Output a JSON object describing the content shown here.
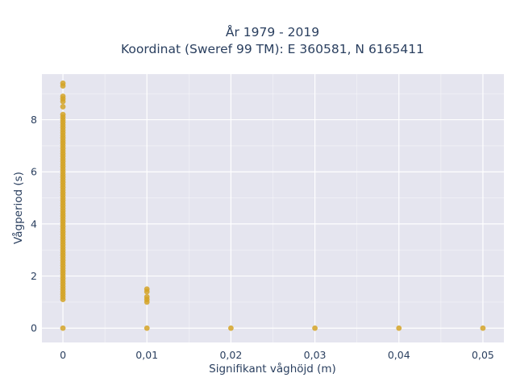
{
  "chart_data": {
    "type": "scatter",
    "title_line1": "År 1979 - 2019",
    "title_line2": "Koordinat (Sweref 99 TM): E 360581, N 6165411",
    "xlabel": "Signifikant våghöjd (m)",
    "ylabel": "Vågperiod (s)",
    "xlim": [
      -0.0025,
      0.0525
    ],
    "ylim": [
      -0.55,
      9.75
    ],
    "x_ticks": [
      {
        "value": 0,
        "label": "0"
      },
      {
        "value": 0.01,
        "label": "0,01"
      },
      {
        "value": 0.02,
        "label": "0,02"
      },
      {
        "value": 0.03,
        "label": "0,03"
      },
      {
        "value": 0.04,
        "label": "0,04"
      },
      {
        "value": 0.05,
        "label": "0,05"
      }
    ],
    "y_ticks": [
      {
        "value": 0,
        "label": "0"
      },
      {
        "value": 2,
        "label": "2"
      },
      {
        "value": 4,
        "label": "4"
      },
      {
        "value": 6,
        "label": "6"
      },
      {
        "value": 8,
        "label": "8"
      }
    ],
    "grid": true,
    "colors": {
      "marker": "#d4a326",
      "plot_bg": "#e5e5ef",
      "grid": "#ffffff"
    },
    "series": [
      {
        "points": [
          [
            0,
            9.4
          ],
          [
            0,
            9.3
          ],
          [
            0,
            8.9
          ],
          [
            0,
            8.8
          ],
          [
            0,
            8.7
          ],
          [
            0,
            8.5
          ],
          [
            0,
            8.2
          ],
          [
            0,
            8.1
          ],
          [
            0,
            8.0
          ],
          [
            0,
            7.9
          ],
          [
            0,
            7.8
          ],
          [
            0,
            7.7
          ],
          [
            0,
            7.6
          ],
          [
            0,
            7.5
          ],
          [
            0,
            7.4
          ],
          [
            0,
            7.3
          ],
          [
            0,
            7.2
          ],
          [
            0,
            7.1
          ],
          [
            0,
            7.0
          ],
          [
            0,
            6.9
          ],
          [
            0,
            6.8
          ],
          [
            0,
            6.7
          ],
          [
            0,
            6.6
          ],
          [
            0,
            6.5
          ],
          [
            0,
            6.4
          ],
          [
            0,
            6.3
          ],
          [
            0,
            6.2
          ],
          [
            0,
            6.1
          ],
          [
            0,
            6.0
          ],
          [
            0,
            5.9
          ],
          [
            0,
            5.8
          ],
          [
            0,
            5.7
          ],
          [
            0,
            5.6
          ],
          [
            0,
            5.5
          ],
          [
            0,
            5.4
          ],
          [
            0,
            5.3
          ],
          [
            0,
            5.2
          ],
          [
            0,
            5.1
          ],
          [
            0,
            5.0
          ],
          [
            0,
            4.9
          ],
          [
            0,
            4.8
          ],
          [
            0,
            4.7
          ],
          [
            0,
            4.6
          ],
          [
            0,
            4.5
          ],
          [
            0,
            4.4
          ],
          [
            0,
            4.3
          ],
          [
            0,
            4.2
          ],
          [
            0,
            4.1
          ],
          [
            0,
            4.0
          ],
          [
            0,
            3.9
          ],
          [
            0,
            3.8
          ],
          [
            0,
            3.7
          ],
          [
            0,
            3.6
          ],
          [
            0,
            3.5
          ],
          [
            0,
            3.4
          ],
          [
            0,
            3.3
          ],
          [
            0,
            3.2
          ],
          [
            0,
            3.1
          ],
          [
            0,
            3.0
          ],
          [
            0,
            2.9
          ],
          [
            0,
            2.8
          ],
          [
            0,
            2.7
          ],
          [
            0,
            2.6
          ],
          [
            0,
            2.5
          ],
          [
            0,
            2.4
          ],
          [
            0,
            2.3
          ],
          [
            0,
            2.2
          ],
          [
            0,
            2.1
          ],
          [
            0,
            2.0
          ],
          [
            0,
            1.9
          ],
          [
            0,
            1.8
          ],
          [
            0,
            1.7
          ],
          [
            0,
            1.6
          ],
          [
            0,
            1.5
          ],
          [
            0,
            1.4
          ],
          [
            0,
            1.3
          ],
          [
            0,
            1.2
          ],
          [
            0,
            1.1
          ],
          [
            0,
            0
          ],
          [
            0.01,
            1.5
          ],
          [
            0.01,
            1.4
          ],
          [
            0.01,
            1.2
          ],
          [
            0.01,
            1.1
          ],
          [
            0.01,
            1.0
          ],
          [
            0.01,
            0
          ],
          [
            0.02,
            0
          ],
          [
            0.03,
            0
          ],
          [
            0.04,
            0
          ],
          [
            0.05,
            0
          ]
        ]
      }
    ]
  }
}
